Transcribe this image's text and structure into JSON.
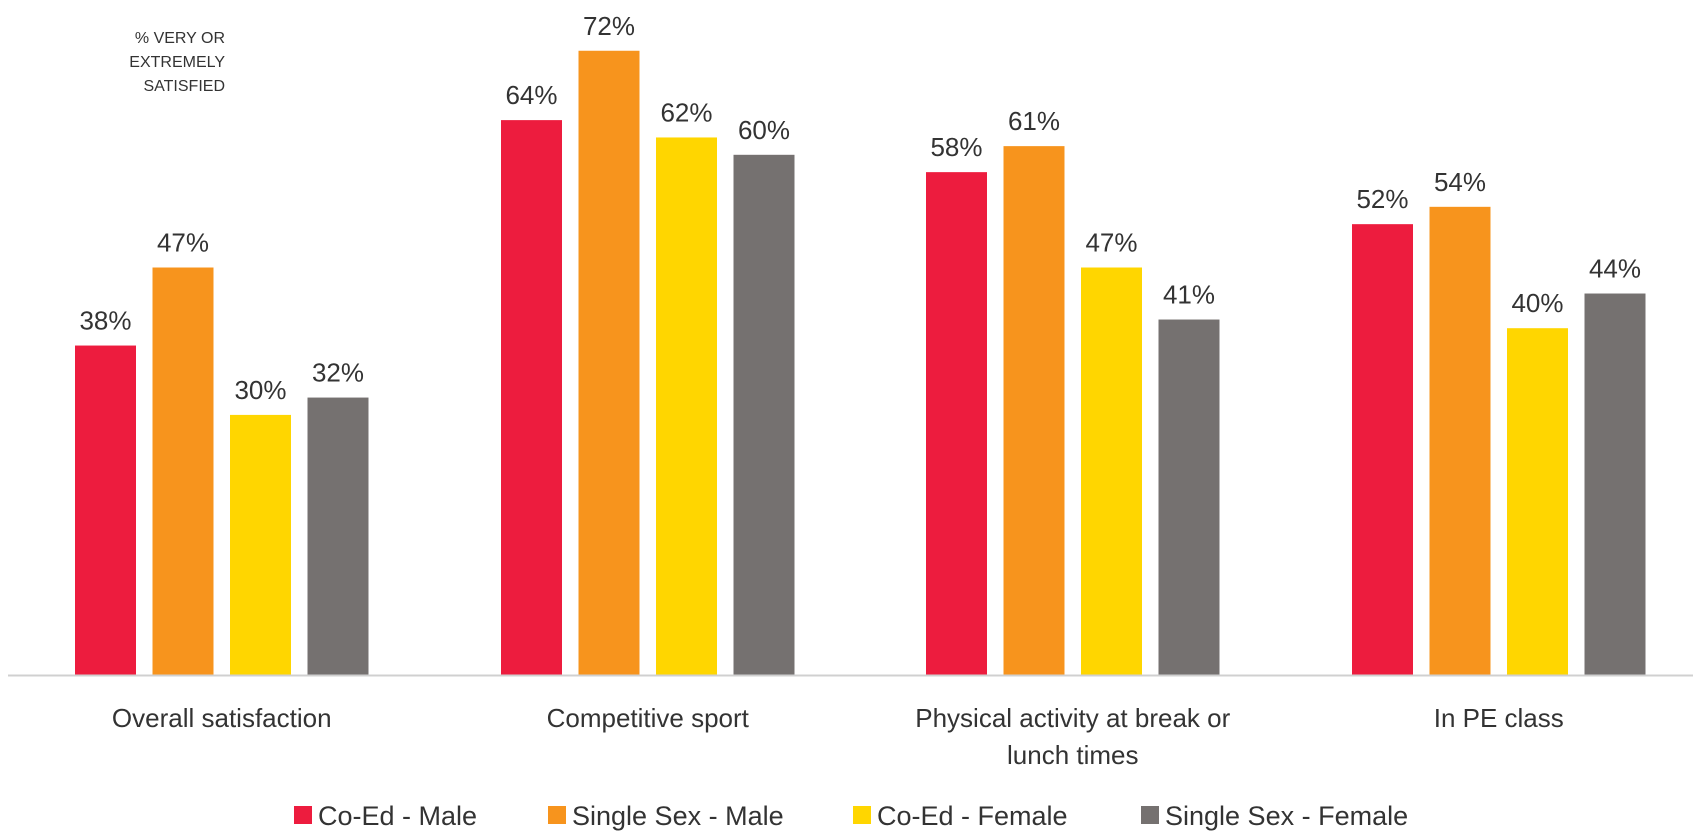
{
  "chart_data": {
    "type": "bar",
    "ylabel": [
      "% VERY OR",
      "EXTREMELY",
      "SATISFIED"
    ],
    "categories": [
      [
        "Overall satisfaction"
      ],
      [
        "Competitive sport"
      ],
      [
        "Physical activity at break or",
        "lunch times"
      ],
      [
        "In PE class"
      ]
    ],
    "series": [
      {
        "name": "Co-Ed - Male",
        "color": "#ED1C3E",
        "values": [
          38,
          64,
          58,
          52
        ],
        "labels": [
          "38%",
          "64%",
          "58%",
          "52%"
        ]
      },
      {
        "name": "Single Sex - Male",
        "color": "#F7941D",
        "values": [
          47,
          72,
          61,
          54
        ],
        "labels": [
          "47%",
          "72%",
          "61%",
          "54%"
        ]
      },
      {
        "name": "Co-Ed - Female",
        "color": "#FFD600",
        "values": [
          30,
          62,
          47,
          40
        ],
        "labels": [
          "30%",
          "62%",
          "47%",
          "40%"
        ]
      },
      {
        "name": "Single Sex - Female",
        "color": "#757170",
        "values": [
          32,
          60,
          41,
          44
        ],
        "labels": [
          "32%",
          "60%",
          "41%",
          "44%"
        ]
      }
    ],
    "ylim": [
      0,
      72
    ],
    "grid": false,
    "legend_position": "bottom"
  }
}
